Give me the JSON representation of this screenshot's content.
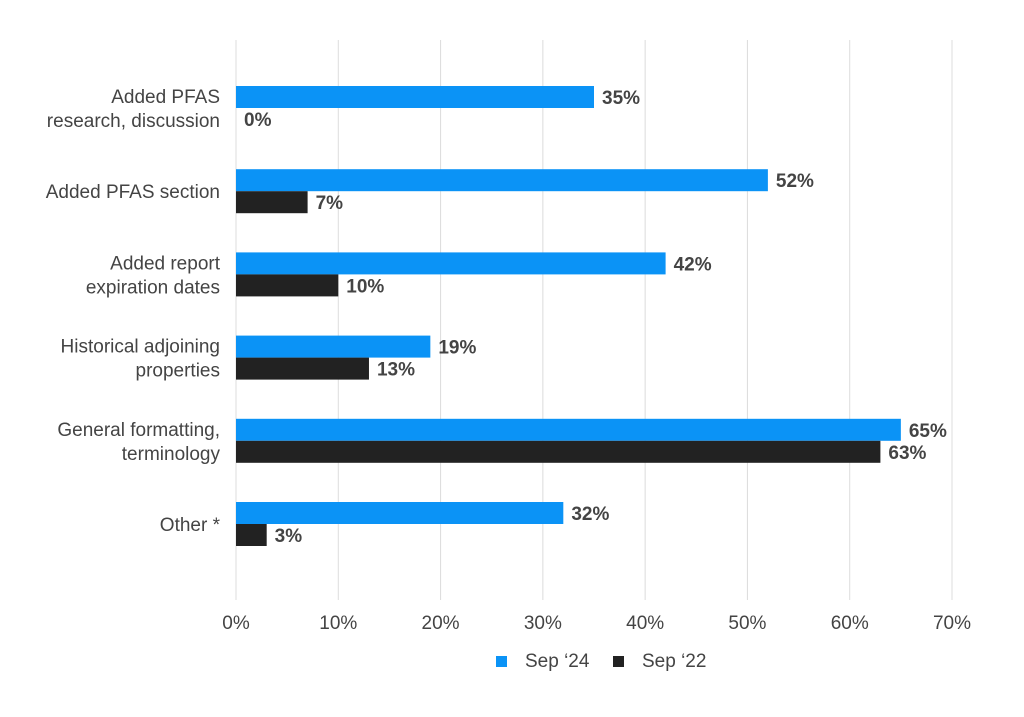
{
  "chart_data": {
    "type": "bar",
    "orientation": "horizontal",
    "categories": [
      [
        "Added PFAS",
        "research, discussion"
      ],
      [
        "Added PFAS section"
      ],
      [
        "Added report",
        "expiration dates"
      ],
      [
        "Historical adjoining",
        "properties"
      ],
      [
        "General formatting,",
        "terminology"
      ],
      [
        "Other *"
      ]
    ],
    "series": [
      {
        "name": "Sep ‘24",
        "color": "#0b93f6",
        "values": [
          35,
          52,
          42,
          19,
          65,
          32
        ]
      },
      {
        "name": "Sep ‘22",
        "color": "#222222",
        "values": [
          0,
          7,
          10,
          13,
          63,
          3
        ]
      }
    ],
    "value_suffix": "%",
    "xlim": [
      0,
      70
    ],
    "xticks": [
      0,
      10,
      20,
      30,
      40,
      50,
      60,
      70
    ],
    "xtick_labels": [
      "0%",
      "10%",
      "20%",
      "30%",
      "40%",
      "50%",
      "60%",
      "70%"
    ],
    "grid": "vertical",
    "legend_position": "bottom-center",
    "title": "",
    "xlabel": "",
    "ylabel": ""
  }
}
